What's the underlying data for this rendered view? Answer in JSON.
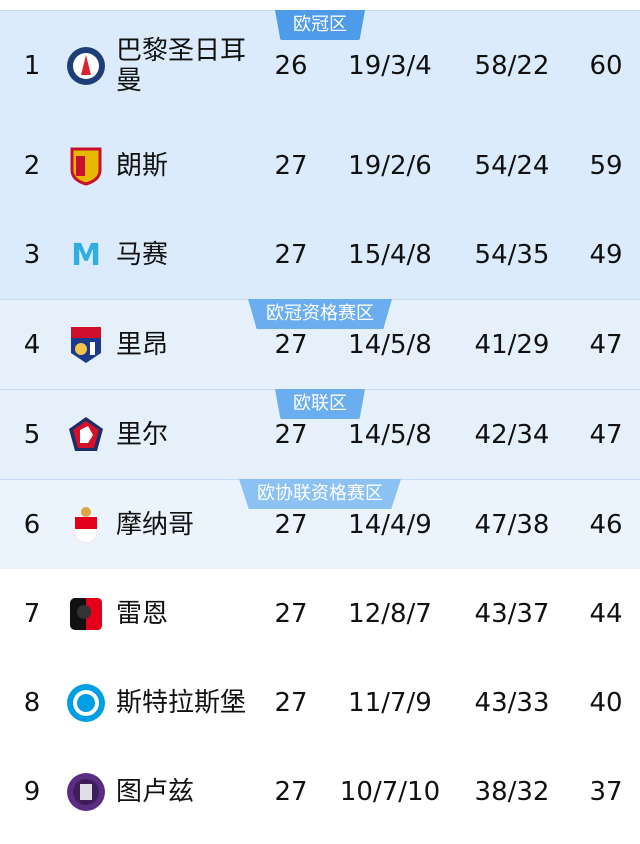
{
  "zones": [
    {
      "label": "欧冠区",
      "rows": [
        0,
        1,
        2
      ]
    },
    {
      "label": "欧冠资格赛区",
      "rows": [
        3
      ]
    },
    {
      "label": "欧联区",
      "rows": [
        4
      ]
    },
    {
      "label": "欧协联资格赛区",
      "rows": [
        5
      ]
    },
    {
      "label": "",
      "rows": [
        6,
        7,
        8
      ]
    }
  ],
  "teams": [
    {
      "rank": "1",
      "name": "巴黎圣日耳曼",
      "played": "26",
      "wdl": "19/3/4",
      "goals": "58/22",
      "points": "60",
      "logo": "psg-logo"
    },
    {
      "rank": "2",
      "name": "朗斯",
      "played": "27",
      "wdl": "19/2/6",
      "goals": "54/24",
      "points": "59",
      "logo": "lens-logo"
    },
    {
      "rank": "3",
      "name": "马赛",
      "played": "27",
      "wdl": "15/4/8",
      "goals": "54/35",
      "points": "49",
      "logo": "marseille-logo"
    },
    {
      "rank": "4",
      "name": "里昂",
      "played": "27",
      "wdl": "14/5/8",
      "goals": "41/29",
      "points": "47",
      "logo": "lyon-logo"
    },
    {
      "rank": "5",
      "name": "里尔",
      "played": "27",
      "wdl": "14/5/8",
      "goals": "42/34",
      "points": "47",
      "logo": "lille-logo"
    },
    {
      "rank": "6",
      "name": "摩纳哥",
      "played": "27",
      "wdl": "14/4/9",
      "goals": "47/38",
      "points": "46",
      "logo": "monaco-logo"
    },
    {
      "rank": "7",
      "name": "雷恩",
      "played": "27",
      "wdl": "12/8/7",
      "goals": "43/37",
      "points": "44",
      "logo": "rennes-logo"
    },
    {
      "rank": "8",
      "name": "斯特拉斯堡",
      "played": "27",
      "wdl": "11/7/9",
      "goals": "43/33",
      "points": "40",
      "logo": "strasbourg-logo"
    },
    {
      "rank": "9",
      "name": "图卢兹",
      "played": "27",
      "wdl": "10/7/10",
      "goals": "38/32",
      "points": "37",
      "logo": "toulouse-logo"
    }
  ],
  "colors": {
    "zone_cl": "#4e9bea",
    "zone_bg": "#dcebfb"
  }
}
